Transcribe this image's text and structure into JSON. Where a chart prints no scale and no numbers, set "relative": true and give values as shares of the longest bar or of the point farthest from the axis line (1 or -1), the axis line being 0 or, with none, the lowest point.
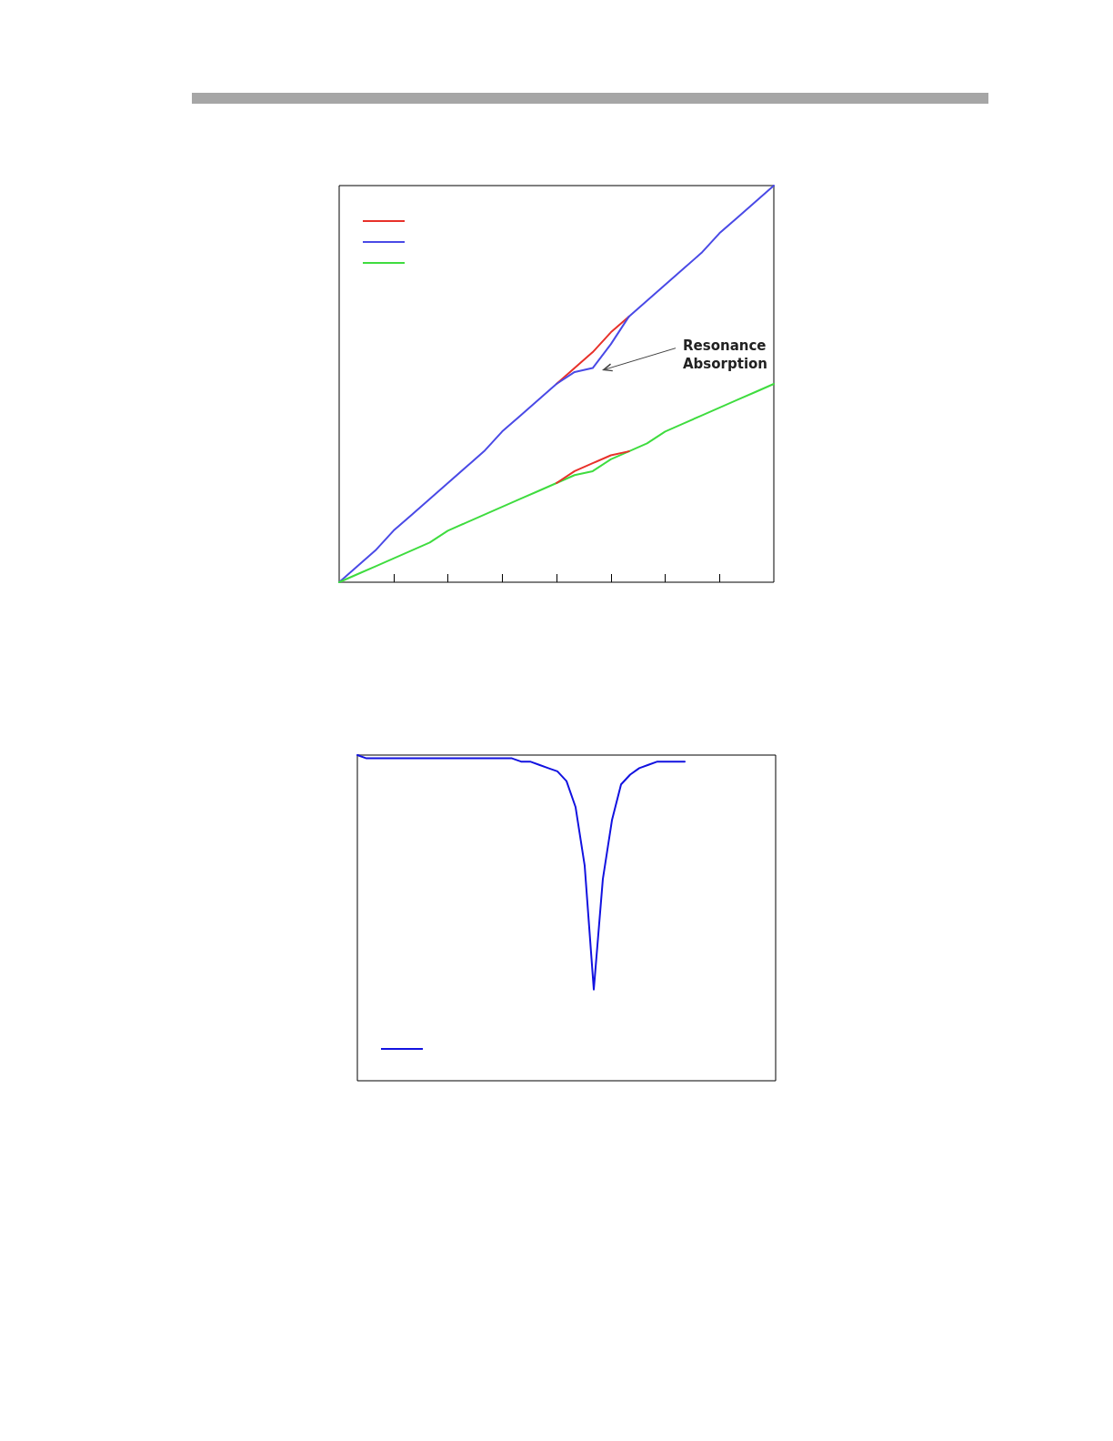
{
  "chart_data": [
    {
      "type": "line",
      "relative": true,
      "marker": "none",
      "grid": false,
      "categories": [
        null,
        null,
        null,
        null,
        null,
        null,
        null,
        null,
        null,
        null,
        null,
        null,
        null,
        null,
        null,
        null,
        null,
        null,
        null,
        null,
        null,
        null,
        null,
        null,
        null
      ],
      "annotations": [
        "Resonance Absorption"
      ],
      "series": [
        {
          "color": "#e8312a",
          "values": [
            null,
            null,
            null,
            null,
            null,
            null,
            null,
            null,
            null,
            null,
            null,
            null,
            0.5,
            0.54,
            0.58,
            0.63,
            0.67,
            null,
            null,
            null,
            null,
            null,
            null,
            null,
            null
          ]
        },
        {
          "color": "#4a4ae6",
          "values": [
            0,
            0.04,
            0.08,
            0.13,
            0.17,
            0.21,
            0.25,
            0.29,
            0.33,
            0.38,
            0.42,
            0.46,
            0.5,
            0.53,
            0.54,
            0.6,
            0.67,
            0.71,
            0.75,
            0.79,
            0.83,
            0.88,
            0.92,
            0.96,
            1
          ]
        },
        {
          "color": "#3fdc3f",
          "values": [
            0,
            0.02,
            0.04,
            0.06,
            0.08,
            0.1,
            0.13,
            0.15,
            0.17,
            0.19,
            0.21,
            0.23,
            0.25,
            0.27,
            0.28,
            0.31,
            0.33,
            0.35,
            0.38,
            0.4,
            0.42,
            0.44,
            0.46,
            0.48,
            0.5
          ]
        },
        {
          "color": "#e8312a",
          "values": [
            null,
            null,
            null,
            null,
            null,
            null,
            null,
            null,
            null,
            null,
            null,
            null,
            0.25,
            0.28,
            0.3,
            0.32,
            0.33,
            null,
            null,
            null,
            null,
            null,
            null,
            null,
            null
          ]
        }
      ]
    },
    {
      "type": "line",
      "relative": true,
      "marker": "none",
      "grid": false,
      "categories": [
        null,
        null,
        null,
        null,
        null,
        null,
        null,
        null,
        null,
        null,
        null,
        null,
        null,
        null,
        null,
        null,
        null,
        null,
        null,
        null,
        null,
        null,
        null,
        null,
        null,
        null,
        null,
        null,
        null,
        null,
        null,
        null,
        null,
        null,
        null,
        null,
        null,
        null,
        null,
        null,
        null,
        null,
        null,
        null,
        null,
        null,
        null
      ],
      "series": [
        {
          "color": "#1212e0",
          "values": [
            1,
            0.99,
            0.99,
            0.99,
            0.99,
            0.99,
            0.99,
            0.99,
            0.99,
            0.99,
            0.99,
            0.99,
            0.99,
            0.99,
            0.99,
            0.99,
            0.99,
            0.99,
            0.98,
            0.98,
            0.97,
            0.96,
            0.95,
            0.92,
            0.84,
            0.66,
            0.28,
            0.62,
            0.8,
            0.91,
            0.94,
            0.96,
            0.97,
            0.98,
            0.98,
            0.98,
            0.98,
            null,
            null,
            null,
            null,
            null,
            null,
            null,
            null,
            null,
            null
          ]
        }
      ]
    }
  ]
}
